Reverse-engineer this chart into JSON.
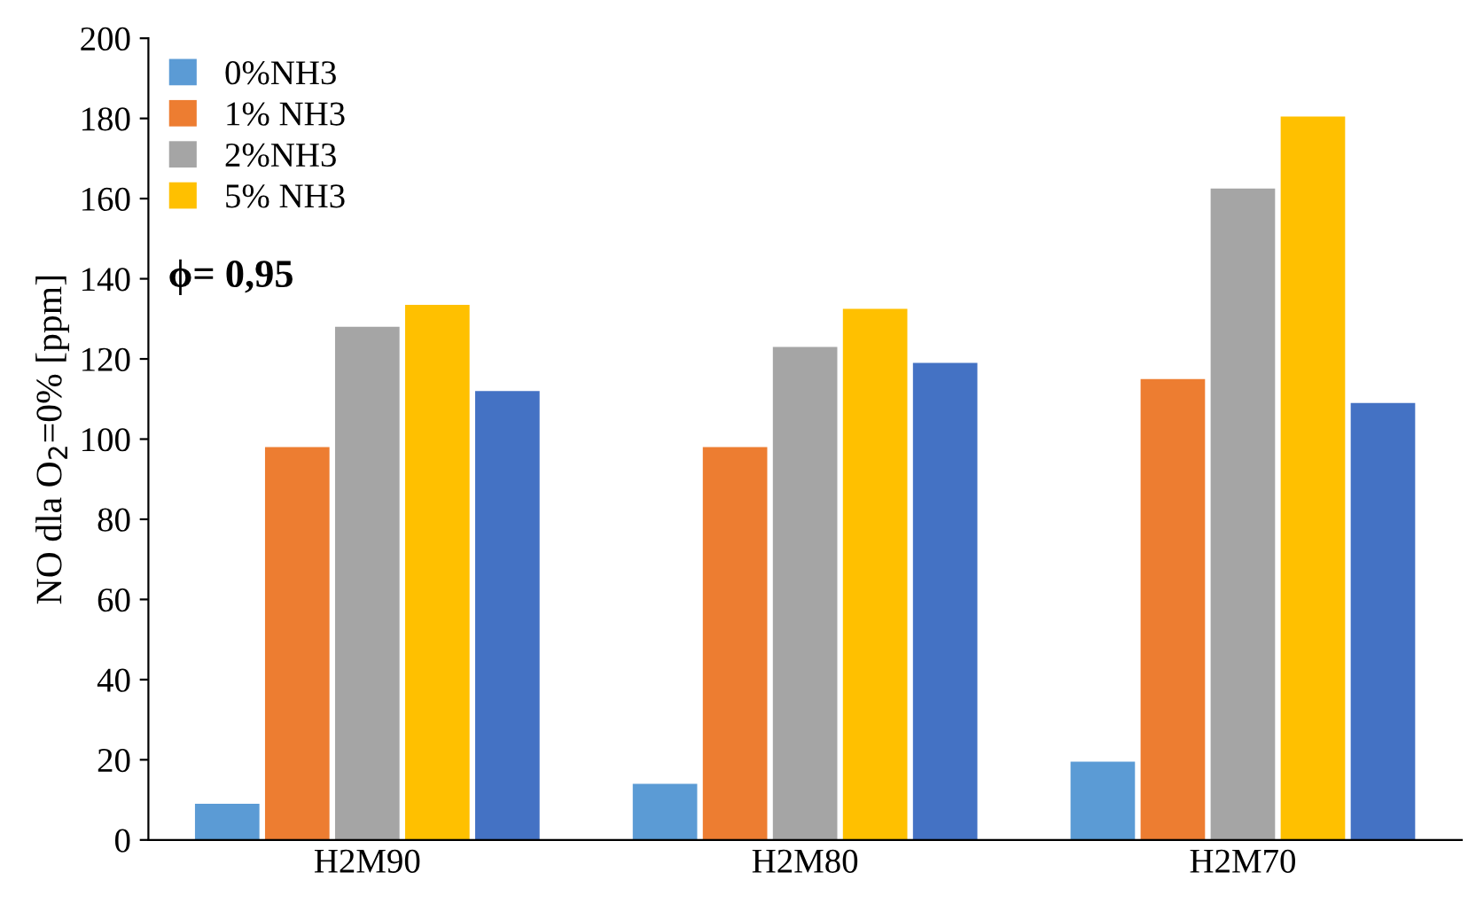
{
  "chart_data": {
    "type": "bar",
    "ylabel": "NO dla O$_{2}$=0% [ppm]",
    "categories": [
      "H2M90",
      "H2M80",
      "H2M70"
    ],
    "series": [
      {
        "name": "0%NH3",
        "color": "#5b9bd5",
        "values": [
          9,
          14,
          19.5
        ]
      },
      {
        "name": "1% NH3",
        "color": "#ed7d31",
        "values": [
          98,
          98,
          115
        ]
      },
      {
        "name": "2%NH3",
        "color": "#a5a5a5",
        "values": [
          128,
          123,
          162.5
        ]
      },
      {
        "name": "5% NH3",
        "color": "#ffc000",
        "values": [
          133.5,
          132.5,
          180.5
        ]
      },
      {
        "color": "#4472c4",
        "values": [
          112,
          119,
          109
        ]
      }
    ],
    "ylim": [
      0,
      200
    ],
    "yticks": [
      0,
      20,
      40,
      60,
      80,
      100,
      120,
      140,
      160,
      180,
      200
    ],
    "grid": false,
    "legend": "top left",
    "annotations": [
      "ϕ= 0,95"
    ]
  }
}
